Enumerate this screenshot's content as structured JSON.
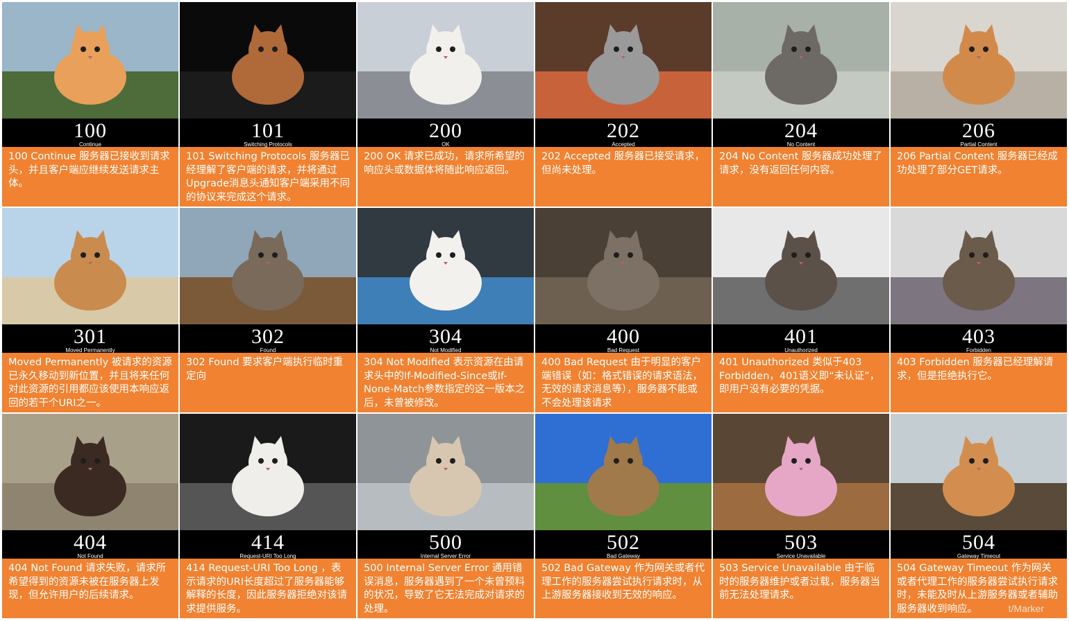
{
  "cards": [
    {
      "code": "100",
      "reason": "Continue",
      "desc": "100 Continue 服务器已接收到请求头，并且客户端应继续发送请求主体。"
    },
    {
      "code": "101",
      "reason": "Switching Protocols",
      "desc": "101 Switching Protocols 服务器已经理解了客户端的请求，并将通过Upgrade消息头通知客户端采用不同的协议来完成这个请求。"
    },
    {
      "code": "200",
      "reason": "OK",
      "desc": "200 OK 请求已成功，请求所希望的响应头或数据体将随此响应返回。"
    },
    {
      "code": "202",
      "reason": "Accepted",
      "desc": "202 Accepted 服务器已接受请求，但尚未处理。"
    },
    {
      "code": "204",
      "reason": "No Content",
      "desc": "204 No Content 服务器成功处理了请求，没有返回任何内容。"
    },
    {
      "code": "206",
      "reason": "Partial Content",
      "desc": "206 Partial Content 服务器已经成功处理了部分GET请求。"
    },
    {
      "code": "301",
      "reason": "Moved Permanently",
      "desc": "Moved Permanently 被请求的资源已永久移动到新位置，并且将来任何对此资源的引用都应该使用本响应返回的若干个URI之一。"
    },
    {
      "code": "302",
      "reason": "Found",
      "desc": "302 Found 要求客户端执行临时重定向"
    },
    {
      "code": "304",
      "reason": "Not Modified",
      "desc": "304 Not Modified 表示资源在由请求头中的If-Modified-Since或If-None-Match参数指定的这一版本之后，未曾被修改。"
    },
    {
      "code": "400",
      "reason": "Bad Request",
      "desc": "400 Bad Request 由于明显的客户端错误（如：格式错误的请求语法，无效的请求消息等），服务器不能或不会处理该请求"
    },
    {
      "code": "401",
      "reason": "Unauthorized",
      "desc": "401 Unauthorized 类似于403 Forbidden，401语义即“未认证”，即用户没有必要的凭据。"
    },
    {
      "code": "403",
      "reason": "Forbidden",
      "desc": "403 Forbidden 服务器已经理解请求，但是拒绝执行它。"
    },
    {
      "code": "404",
      "reason": "Not Found",
      "desc": "404 Not Found 请求失败，请求所希望得到的资源未被在服务器上发现，但允许用户的后续请求。"
    },
    {
      "code": "414",
      "reason": "Request-URI Too Long",
      "desc": "414 Request-URI Too Long ，表示请求的URI长度超过了服务器能够解释的长度，因此服务器拒绝对该请求提供服务。"
    },
    {
      "code": "500",
      "reason": "Internal Server Error",
      "desc": "500 Internal Server Error 通用错误消息，服务器遇到了一个未曾预料的状况，导致了它无法完成对请求的处理。"
    },
    {
      "code": "502",
      "reason": "Bad Gateway",
      "desc": "502 Bad Gateway 作为网关或者代理工作的服务器尝试执行请求时，从上游服务器接收到无效的响应。"
    },
    {
      "code": "503",
      "reason": "Service Unavailable",
      "desc": "503 Service Unavailable 由于临时的服务器维护或者过载，服务器当前无法处理请求。"
    },
    {
      "code": "504",
      "reason": "Gateway Timeout",
      "desc": "504 Gateway Timeout 作为网关或者代理工作的服务器尝试执行请求时，未能及时从上游服务器或者辅助服务器收到响应。"
    }
  ],
  "watermark": "t/Marker",
  "colors": {
    "desc_bg": "#f08231",
    "code_bg": "#000000",
    "text": "#ffffff"
  },
  "photos": [
    {
      "sky": "#9bb5c9",
      "ground": "#4e6b3a",
      "cat": "#e8a05a"
    },
    {
      "sky": "#0a0a0a",
      "ground": "#1b1b1b",
      "cat": "#b06a3a"
    },
    {
      "sky": "#c9cfd6",
      "ground": "#8b8f95",
      "cat": "#f1f0ec"
    },
    {
      "sky": "#5b3b2a",
      "ground": "#c8623a",
      "cat": "#9a9a9a"
    },
    {
      "sky": "#a7b1a8",
      "ground": "#c4c9c2",
      "cat": "#6d6a66"
    },
    {
      "sky": "#d9d6cf",
      "ground": "#b8b0a4",
      "cat": "#d28a4a"
    },
    {
      "sky": "#b9d4e8",
      "ground": "#d8c9a8",
      "cat": "#c98b4e"
    },
    {
      "sky": "#8fa7b8",
      "ground": "#7b5a3a",
      "cat": "#7a6a5a"
    },
    {
      "sky": "#303a40",
      "ground": "#3e7fb8",
      "cat": "#f3f1ed"
    },
    {
      "sky": "#4b4036",
      "ground": "#6e6050",
      "cat": "#7d7165"
    },
    {
      "sky": "#e8e8e8",
      "ground": "#6f6f6f",
      "cat": "#5b5148"
    },
    {
      "sky": "#d9d9d9",
      "ground": "#7d7580",
      "cat": "#6b5b4a"
    },
    {
      "sky": "#a9a089",
      "ground": "#8e8470",
      "cat": "#3b2a22"
    },
    {
      "sky": "#1a1a1a",
      "ground": "#555555",
      "cat": "#efeeea"
    },
    {
      "sky": "#8f9499",
      "ground": "#b7bcc1",
      "cat": "#d8c7b0"
    },
    {
      "sky": "#2f6ed3",
      "ground": "#5f8f3f",
      "cat": "#a07a4a"
    },
    {
      "sky": "#5a4634",
      "ground": "#9c6b3f",
      "cat": "#e6a7c6"
    },
    {
      "sky": "#c4cdd1",
      "ground": "#5a4a3a",
      "cat": "#d38e4f"
    }
  ]
}
